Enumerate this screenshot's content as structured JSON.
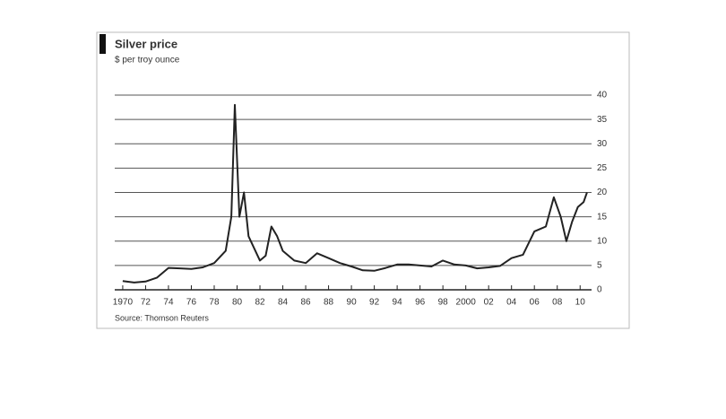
{
  "chart_data": {
    "type": "line",
    "title": "Silver price",
    "subtitle": "$ per troy ounce",
    "source": "Source: Thomson Reuters",
    "x": [
      1970,
      1971,
      1972,
      1973,
      1974,
      1975,
      1976,
      1977,
      1978,
      1979,
      1979.5,
      1979.8,
      1980.2,
      1980.6,
      1981,
      1982,
      1982.5,
      1983,
      1983.5,
      1984,
      1985,
      1986,
      1987,
      1988,
      1989,
      1990,
      1991,
      1992,
      1993,
      1994,
      1995,
      1996,
      1997,
      1998,
      1999,
      2000,
      2001,
      2002,
      2003,
      2004,
      2005,
      2006,
      2007,
      2007.7,
      2008.3,
      2008.8,
      2009.3,
      2009.8,
      2010.3,
      2010.6
    ],
    "series": [
      {
        "name": "Silver price",
        "color": "#222222",
        "values": [
          1.8,
          1.5,
          1.7,
          2.5,
          4.5,
          4.4,
          4.3,
          4.6,
          5.5,
          8,
          15,
          38,
          15,
          20,
          11,
          6,
          7,
          13,
          11,
          8,
          6,
          5.5,
          7.5,
          6.5,
          5.5,
          4.8,
          4,
          3.9,
          4.5,
          5.2,
          5.2,
          5,
          4.8,
          6,
          5.2,
          5,
          4.4,
          4.6,
          4.9,
          6.5,
          7.2,
          12,
          13,
          19,
          15,
          10,
          14,
          17,
          18,
          20
        ]
      }
    ],
    "xlim": [
      1969.3,
      2011.0
    ],
    "xticks": [
      1970,
      {
        "value": 1972,
        "label": "72"
      },
      {
        "value": 1974,
        "label": "74"
      },
      {
        "value": 1976,
        "label": "76"
      },
      {
        "value": 1978,
        "label": "78"
      },
      {
        "value": 1980,
        "label": "80"
      },
      {
        "value": 1982,
        "label": "82"
      },
      {
        "value": 1984,
        "label": "84"
      },
      {
        "value": 1986,
        "label": "86"
      },
      {
        "value": 1988,
        "label": "88"
      },
      {
        "value": 1990,
        "label": "90"
      },
      {
        "value": 1992,
        "label": "92"
      },
      {
        "value": 1994,
        "label": "94"
      },
      {
        "value": 1996,
        "label": "96"
      },
      {
        "value": 1998,
        "label": "98"
      },
      2000,
      {
        "value": 2002,
        "label": "02"
      },
      {
        "value": 2004,
        "label": "04"
      },
      {
        "value": 2006,
        "label": "06"
      },
      {
        "value": 2008,
        "label": "08"
      },
      {
        "value": 2010,
        "label": "10"
      }
    ],
    "ylim": [
      0,
      40
    ],
    "yticks": [
      0,
      5,
      10,
      15,
      20,
      25,
      30,
      35,
      40
    ],
    "grid": true
  }
}
